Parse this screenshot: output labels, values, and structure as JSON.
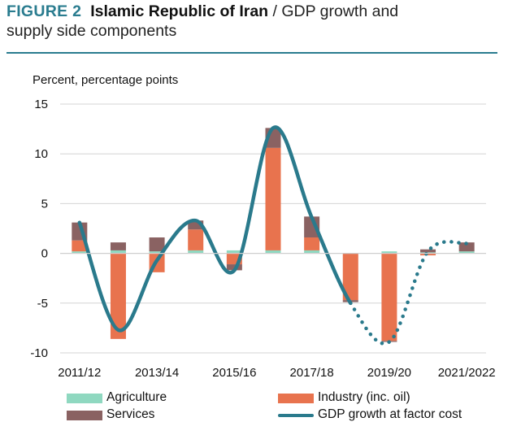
{
  "figure": {
    "number": "FIGURE 2",
    "country": "Islamic Republic of Iran",
    "title_rest": " / GDP growth and",
    "title_line2": "supply side components"
  },
  "colors": {
    "agriculture": "#8fd8c0",
    "industry": "#e8734e",
    "services": "#8a6262",
    "gdp_line": "#2a7a8c",
    "grid": "#d4d4d4",
    "accent": "#2a7c8f"
  },
  "chart_data": {
    "type": "bar",
    "stacked": true,
    "ylabel": "Percent, percentage points",
    "ylim": [
      -10,
      15
    ],
    "yticks": [
      15,
      10,
      5,
      0,
      -5,
      -10
    ],
    "ytick_labels": [
      "15",
      "10",
      "5",
      "0",
      "-5",
      "-10"
    ],
    "grid": true,
    "categories": [
      "2011/12",
      "2012/13",
      "2013/14",
      "2014/15",
      "2015/16",
      "2016/17",
      "2017/18",
      "2018/19",
      "2019/20",
      "2020/21",
      "2021/2022"
    ],
    "x_tick_labels": [
      "2011/12",
      "2013/14",
      "2015/16",
      "2017/18",
      "2019/20",
      "2021/2022"
    ],
    "series": [
      {
        "name": "Agriculture",
        "values": [
          0.2,
          0.3,
          0.2,
          0.3,
          0.3,
          0.3,
          0.3,
          0.0,
          0.2,
          0.1,
          0.2
        ]
      },
      {
        "name": "Industry (inc. oil)",
        "values": [
          1.1,
          -8.6,
          -1.9,
          2.1,
          -1.1,
          10.3,
          1.3,
          -4.7,
          -8.8,
          -0.2,
          0.0
        ]
      },
      {
        "name": "Services",
        "values": [
          1.8,
          0.8,
          1.4,
          0.9,
          -0.6,
          2.0,
          2.1,
          -0.2,
          -0.1,
          0.3,
          0.9
        ]
      }
    ],
    "line": {
      "name": "GDP growth at factor cost",
      "values": [
        3.1,
        -7.7,
        -0.7,
        3.3,
        -1.7,
        12.6,
        3.6,
        -5.0,
        -8.9,
        0.2,
        1.0
      ],
      "projected_from_index": 7
    },
    "legend": [
      "Agriculture",
      "Industry (inc. oil)",
      "Services",
      "GDP growth at factor cost"
    ],
    "legend_placement": "bottom"
  }
}
